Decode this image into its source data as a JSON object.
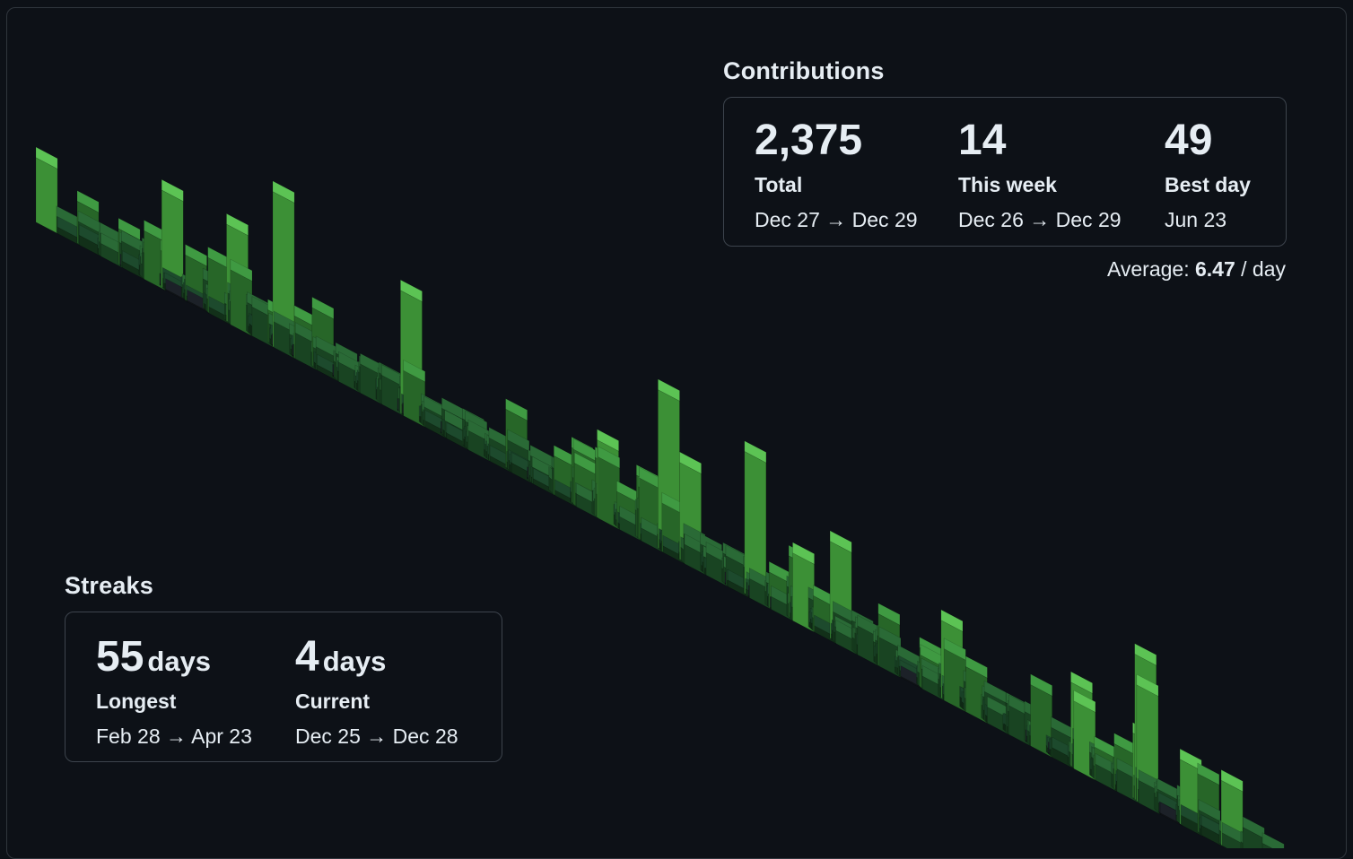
{
  "contributions": {
    "heading": "Contributions",
    "total": {
      "value": "2,375",
      "label": "Total",
      "range": "Dec 27 → Dec 29"
    },
    "this_week": {
      "value": "14",
      "label": "This week",
      "range": "Dec 26 → Dec 29"
    },
    "best_day": {
      "value": "49",
      "label": "Best day",
      "range": "Jun 23"
    },
    "average_label": "Average:",
    "average_value": "6.47",
    "average_unit": "/ day"
  },
  "streaks": {
    "heading": "Streaks",
    "longest": {
      "value": "55",
      "unit": "days",
      "label": "Longest",
      "range": "Feb 28 → Apr 23"
    },
    "current": {
      "value": "4",
      "unit": "days",
      "label": "Current",
      "range": "Dec 25 → Dec 28"
    }
  },
  "colors": {
    "background": "#0d1117",
    "border": "#30363d",
    "level0": "#161b22",
    "level1": "#0e4429",
    "level2": "#006d32",
    "level3": "#26a641",
    "level4": "#39d353"
  },
  "chart_data": {
    "type": "heatmap",
    "description_free": true,
    "weeks": 53,
    "days_per_week": 7,
    "max_value": 49,
    "best_day_index": 173,
    "seed": 20231229
  }
}
